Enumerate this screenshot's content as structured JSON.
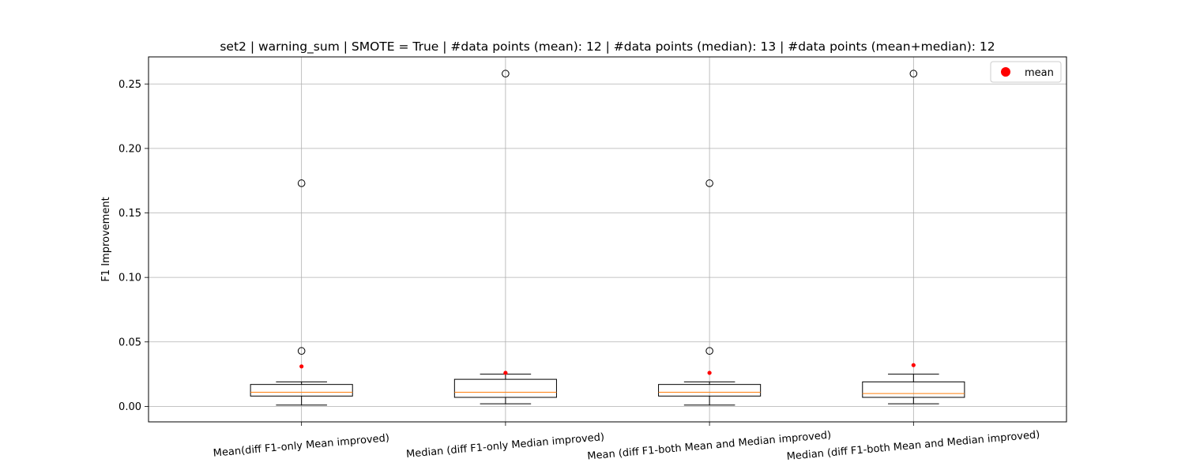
{
  "chart_data": {
    "type": "boxplot",
    "title": "set2 | warning_sum | SMOTE = True | #data points (mean): 12 | #data points (median): 13 | #data points (mean+median): 12",
    "xlabel": "",
    "ylabel": "F1 Improvement",
    "ylim": [
      -0.012,
      0.271
    ],
    "y_ticks": [
      0.0,
      0.05,
      0.1,
      0.15,
      0.2,
      0.25
    ],
    "y_tick_labels": [
      "0.00",
      "0.05",
      "0.10",
      "0.15",
      "0.20",
      "0.25"
    ],
    "grid": true,
    "legend": {
      "location": "upper right",
      "entries": [
        {
          "label": "mean",
          "color": "#ff0000",
          "marker": "circle"
        }
      ]
    },
    "categories": [
      "Mean(diff F1-only Mean improved)",
      "Median (diff F1-only Median improved)",
      "Mean (diff F1-both Mean and Median improved)",
      "Median (diff F1-both Mean and Median improved)"
    ],
    "boxes": [
      {
        "whisker_low": 0.001,
        "q1": 0.008,
        "median": 0.011,
        "q3": 0.017,
        "whisker_high": 0.019,
        "mean": 0.031,
        "fliers": [
          0.043,
          0.173
        ]
      },
      {
        "whisker_low": 0.002,
        "q1": 0.007,
        "median": 0.011,
        "q3": 0.021,
        "whisker_high": 0.025,
        "mean": 0.026,
        "fliers": [
          0.258
        ]
      },
      {
        "whisker_low": 0.001,
        "q1": 0.008,
        "median": 0.011,
        "q3": 0.017,
        "whisker_high": 0.019,
        "mean": 0.026,
        "fliers": [
          0.043,
          0.173
        ]
      },
      {
        "whisker_low": 0.002,
        "q1": 0.007,
        "median": 0.01,
        "q3": 0.019,
        "whisker_high": 0.025,
        "mean": 0.032,
        "fliers": [
          0.258
        ]
      }
    ],
    "colors": {
      "box": "#000000",
      "median_line": "#ff7f0e",
      "mean_marker": "#ff0000",
      "grid": "#b0b0b0"
    }
  }
}
